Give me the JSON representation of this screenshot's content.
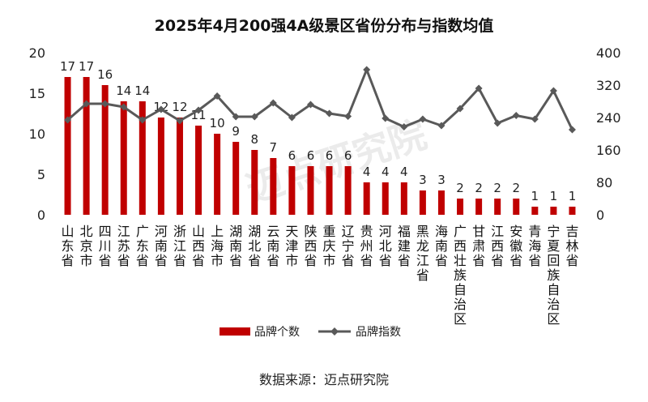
{
  "chart_data": {
    "type": "bar",
    "title": "2025年4月200强4A级景区省份分布与指数均值",
    "categories": [
      "山东省",
      "北京市",
      "四川省",
      "江苏省",
      "广东省",
      "河南省",
      "浙江省",
      "山西省",
      "上海市",
      "湖南省",
      "湖北省",
      "云南省",
      "天津市",
      "陕西省",
      "重庆市",
      "辽宁省",
      "贵州省",
      "河北省",
      "福建省",
      "黑龙江省",
      "海南省",
      "广西壮族自治区",
      "甘肃省",
      "江西省",
      "安徽省",
      "青海省",
      "宁夏回族自治区",
      "吉林省"
    ],
    "series": [
      {
        "name": "品牌个数",
        "type": "bar",
        "axis": "left",
        "color": "#c00000",
        "values": [
          17,
          17,
          16,
          14,
          14,
          12,
          12,
          11,
          10,
          9,
          8,
          7,
          6,
          6,
          6,
          6,
          4,
          4,
          4,
          3,
          3,
          2,
          2,
          2,
          2,
          1,
          1,
          1
        ]
      },
      {
        "name": "品牌指数",
        "type": "line",
        "axis": "right",
        "color": "#595959",
        "values": [
          234,
          274,
          274,
          266,
          234,
          260,
          232,
          258,
          293,
          242,
          242,
          276,
          240,
          272,
          250,
          243,
          358,
          238,
          217,
          236,
          220,
          262,
          312,
          226,
          245,
          236,
          306,
          210
        ]
      }
    ],
    "ylim_left": [
      0,
      20
    ],
    "yticks_left": [
      0,
      5,
      10,
      15,
      20
    ],
    "ylim_right": [
      0,
      400
    ],
    "yticks_right": [
      0,
      80,
      160,
      240,
      320,
      400
    ],
    "legend_position": "bottom",
    "grid": false
  },
  "source": "数据来源：迈点研究院",
  "watermark": "迈点研究院"
}
